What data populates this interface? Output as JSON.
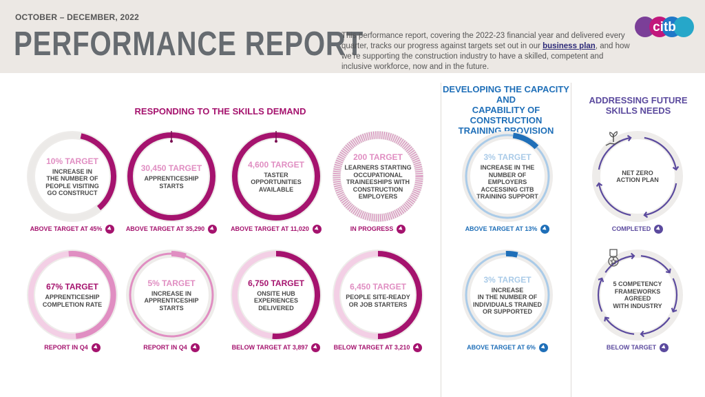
{
  "header": {
    "date_range": "OCTOBER – DECEMBER, 2022",
    "title": "PERFORMANCE REPORT",
    "intro_before": "This performance report, covering the 2022-23 financial year and delivered every quarter, tracks our progress against targets set out in our ",
    "intro_link": "business plan",
    "intro_after": ", and how we’re supporting the construction industry to have a skilled, competent and inclusive workforce, now and in the future.",
    "logo_text": "citb"
  },
  "colors": {
    "magenta": "#a5136e",
    "pink": "#e08ec2",
    "pale_pink": "#f3cfe5",
    "blue": "#1f6fb8",
    "light_blue": "#aacbe8",
    "purple": "#5b4a9e",
    "grey_ring": "#eceae8"
  },
  "sections": {
    "skills": {
      "title": "RESPONDING TO THE SKILLS DEMAND"
    },
    "capacity": {
      "title_line1": "DEVELOPING THE CAPACITY AND",
      "title_line2": "CAPABILITY OF CONSTRUCTION",
      "title_line3": "TRAINING PROVISION"
    },
    "future": {
      "title_line1": "ADDRESSING FUTURE",
      "title_line2": "SKILLS NEEDS"
    }
  },
  "metrics": [
    {
      "target": "10% TARGET",
      "d1": "INCREASE IN",
      "d2": "THE NUMBER OF",
      "d3": "PEOPLE VISITING",
      "d4": "GO CONSTRUCT",
      "status": "ABOVE TARGET AT 45%"
    },
    {
      "target": "30,450 TARGET",
      "d1": "APPRENTICESHIP",
      "d2": "STARTS",
      "status": "ABOVE TARGET AT 35,290"
    },
    {
      "target": "4,600 TARGET",
      "d1": "TASTER",
      "d2": "OPPORTUNITIES",
      "d3": "AVAILABLE",
      "status": "ABOVE TARGET AT 11,020"
    },
    {
      "target": "200 TARGET",
      "d1": "LEARNERS STARTING",
      "d2": "OCCUPATIONAL",
      "d3": "TRAINEESHIPS WITH",
      "d4": "CONSTRUCTION",
      "d5": "EMPLOYERS",
      "status": "IN PROGRESS"
    },
    {
      "target": "67% TARGET",
      "d1": "APPRENTICESHIP",
      "d2": "COMPLETION RATE",
      "status": "REPORT IN Q4"
    },
    {
      "target": "5% TARGET",
      "d1": "INCREASE IN",
      "d2": "APPRENTICESHIP",
      "d3": "STARTS",
      "status": "REPORT IN Q4"
    },
    {
      "target": "6,750 TARGET",
      "d1": "ONSITE HUB",
      "d2": "EXPERIENCES",
      "d3": "DELIVERED",
      "status": "BELOW TARGET AT 3,897"
    },
    {
      "target": "6,450 TARGET",
      "d1": "PEOPLE SITE-READY",
      "d2": "OR JOB STARTERS",
      "status": "BELOW TARGET AT 3,210"
    },
    {
      "target": "3% TARGET",
      "d1": "INCREASE IN THE",
      "d2": "NUMBER OF EMPLOYERS",
      "d3": "ACCESSING CITB",
      "d4": "TRAINING SUPPORT",
      "status": "ABOVE TARGET AT 13%"
    },
    {
      "target": "3% TARGET",
      "d1": "INCREASE",
      "d2": "IN THE NUMBER OF",
      "d3": "INDIVIDUALS TRAINED",
      "d4": "OR SUPPORTED",
      "status": "ABOVE TARGET AT 6%"
    },
    {
      "d1": "NET ZERO",
      "d2": "ACTION PLAN",
      "status": "COMPLETED",
      "icon": "hand-plant-icon"
    },
    {
      "d1": "5 COMPETENCY",
      "d2": "FRAMEWORKS AGREED",
      "d3": "WITH INDUSTRY",
      "status": "BELOW TARGET",
      "icon": "award-ribbon-icon"
    }
  ]
}
